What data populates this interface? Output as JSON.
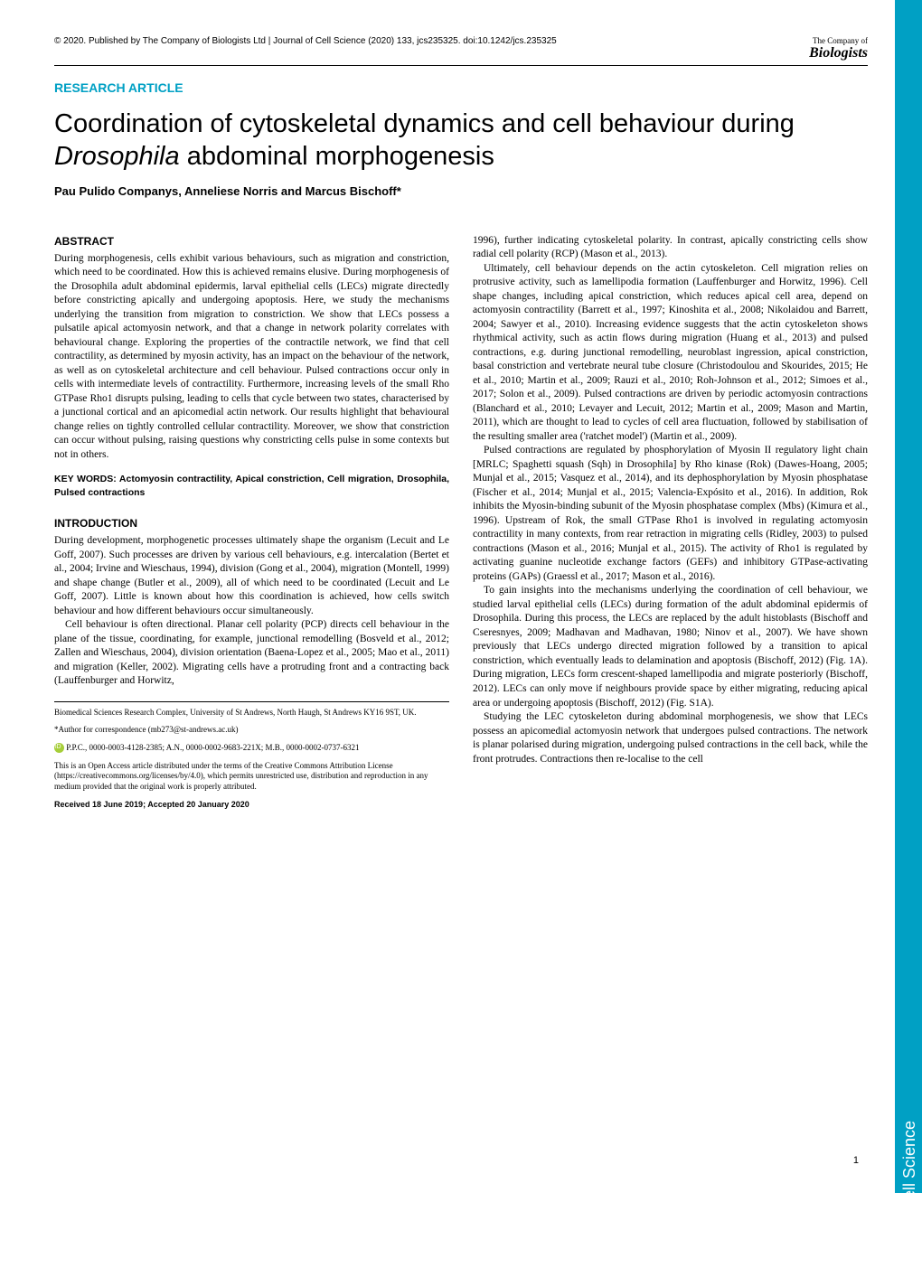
{
  "header": {
    "copyright": "© 2020. Published by The Company of Biologists Ltd | Journal of Cell Science (2020) 133, jcs235325. doi:10.1242/jcs.235325",
    "logo_small": "The Company of",
    "logo_bold": "Biologists"
  },
  "article_type": "RESEARCH ARTICLE",
  "title_part1": "Coordination of cytoskeletal dynamics and cell behaviour during ",
  "title_italic": "Drosophila",
  "title_part2": " abdominal morphogenesis",
  "authors": "Pau Pulido Companys, Anneliese Norris and Marcus Bischoff*",
  "abstract_head": "ABSTRACT",
  "abstract_body": "During morphogenesis, cells exhibit various behaviours, such as migration and constriction, which need to be coordinated. How this is achieved remains elusive. During morphogenesis of the Drosophila adult abdominal epidermis, larval epithelial cells (LECs) migrate directedly before constricting apically and undergoing apoptosis. Here, we study the mechanisms underlying the transition from migration to constriction. We show that LECs possess a pulsatile apical actomyosin network, and that a change in network polarity correlates with behavioural change. Exploring the properties of the contractile network, we find that cell contractility, as determined by myosin activity, has an impact on the behaviour of the network, as well as on cytoskeletal architecture and cell behaviour. Pulsed contractions occur only in cells with intermediate levels of contractility. Furthermore, increasing levels of the small Rho GTPase Rho1 disrupts pulsing, leading to cells that cycle between two states, characterised by a junctional cortical and an apicomedial actin network. Our results highlight that behavioural change relies on tightly controlled cellular contractility. Moreover, we show that constriction can occur without pulsing, raising questions why constricting cells pulse in some contexts but not in others.",
  "keywords": "KEY WORDS: Actomyosin contractility, Apical constriction, Cell migration, Drosophila, Pulsed contractions",
  "intro_head": "INTRODUCTION",
  "intro_p1": "During development, morphogenetic processes ultimately shape the organism (Lecuit and Le Goff, 2007). Such processes are driven by various cell behaviours, e.g. intercalation (Bertet et al., 2004; Irvine and Wieschaus, 1994), division (Gong et al., 2004), migration (Montell, 1999) and shape change (Butler et al., 2009), all of which need to be coordinated (Lecuit and Le Goff, 2007). Little is known about how this coordination is achieved, how cells switch behaviour and how different behaviours occur simultaneously.",
  "intro_p2": "Cell behaviour is often directional. Planar cell polarity (PCP) directs cell behaviour in the plane of the tissue, coordinating, for example, junctional remodelling (Bosveld et al., 2012; Zallen and Wieschaus, 2004), division orientation (Baena-Lopez et al., 2005; Mao et al., 2011) and migration (Keller, 2002). Migrating cells have a protruding front and a contracting back (Lauffenburger and Horwitz,",
  "right_p1": "1996), further indicating cytoskeletal polarity. In contrast, apically constricting cells show radial cell polarity (RCP) (Mason et al., 2013).",
  "right_p2": "Ultimately, cell behaviour depends on the actin cytoskeleton. Cell migration relies on protrusive activity, such as lamellipodia formation (Lauffenburger and Horwitz, 1996). Cell shape changes, including apical constriction, which reduces apical cell area, depend on actomyosin contractility (Barrett et al., 1997; Kinoshita et al., 2008; Nikolaidou and Barrett, 2004; Sawyer et al., 2010). Increasing evidence suggests that the actin cytoskeleton shows rhythmical activity, such as actin flows during migration (Huang et al., 2013) and pulsed contractions, e.g. during junctional remodelling, neuroblast ingression, apical constriction, basal constriction and vertebrate neural tube closure (Christodoulou and Skourides, 2015; He et al., 2010; Martin et al., 2009; Rauzi et al., 2010; Roh-Johnson et al., 2012; Simoes et al., 2017; Solon et al., 2009). Pulsed contractions are driven by periodic actomyosin contractions (Blanchard et al., 2010; Levayer and Lecuit, 2012; Martin et al., 2009; Mason and Martin, 2011), which are thought to lead to cycles of cell area fluctuation, followed by stabilisation of the resulting smaller area ('ratchet model') (Martin et al., 2009).",
  "right_p3": "Pulsed contractions are regulated by phosphorylation of Myosin II regulatory light chain [MRLC; Spaghetti squash (Sqh) in Drosophila] by Rho kinase (Rok) (Dawes-Hoang, 2005; Munjal et al., 2015; Vasquez et al., 2014), and its dephosphorylation by Myosin phosphatase (Fischer et al., 2014; Munjal et al., 2015; Valencia-Expósito et al., 2016). In addition, Rok inhibits the Myosin-binding subunit of the Myosin phosphatase complex (Mbs) (Kimura et al., 1996). Upstream of Rok, the small GTPase Rho1 is involved in regulating actomyosin contractility in many contexts, from rear retraction in migrating cells (Ridley, 2003) to pulsed contractions (Mason et al., 2016; Munjal et al., 2015). The activity of Rho1 is regulated by activating guanine nucleotide exchange factors (GEFs) and inhibitory GTPase-activating proteins (GAPs) (Graessl et al., 2017; Mason et al., 2016).",
  "right_p4": "To gain insights into the mechanisms underlying the coordination of cell behaviour, we studied larval epithelial cells (LECs) during formation of the adult abdominal epidermis of Drosophila. During this process, the LECs are replaced by the adult histoblasts (Bischoff and Cseresnyes, 2009; Madhavan and Madhavan, 1980; Ninov et al., 2007). We have shown previously that LECs undergo directed migration followed by a transition to apical constriction, which eventually leads to delamination and apoptosis (Bischoff, 2012) (Fig. 1A). During migration, LECs form crescent-shaped lamellipodia and migrate posteriorly (Bischoff, 2012). LECs can only move if neighbours provide space by either migrating, reducing apical area or undergoing apoptosis (Bischoff, 2012) (Fig. S1A).",
  "right_p5": "Studying the LEC cytoskeleton during abdominal morphogenesis, we show that LECs possess an apicomedial actomyosin network that undergoes pulsed contractions. The network is planar polarised during migration, undergoing pulsed contractions in the cell back, while the front protrudes. Contractions then re-localise to the cell",
  "footnotes": {
    "affiliation": "Biomedical Sciences Research Complex, University of St Andrews, North Haugh, St Andrews KY16 9ST, UK.",
    "correspondence": "*Author for correspondence (mb273@st-andrews.ac.uk)",
    "orcid": "P.P.C., 0000-0003-4128-2385; A.N., 0000-0002-9683-221X; M.B., 0000-0002-0737-6321",
    "license": "This is an Open Access article distributed under the terms of the Creative Commons Attribution License (https://creativecommons.org/licenses/by/4.0), which permits unrestricted use, distribution and reproduction in any medium provided that the original work is properly attributed.",
    "received": "Received 18 June 2019; Accepted 20 January 2020"
  },
  "side_tab": "Journal of Cell Science",
  "page_num": "1",
  "colors": {
    "accent": "#00a0c4",
    "orcid": "#a6ce39"
  }
}
